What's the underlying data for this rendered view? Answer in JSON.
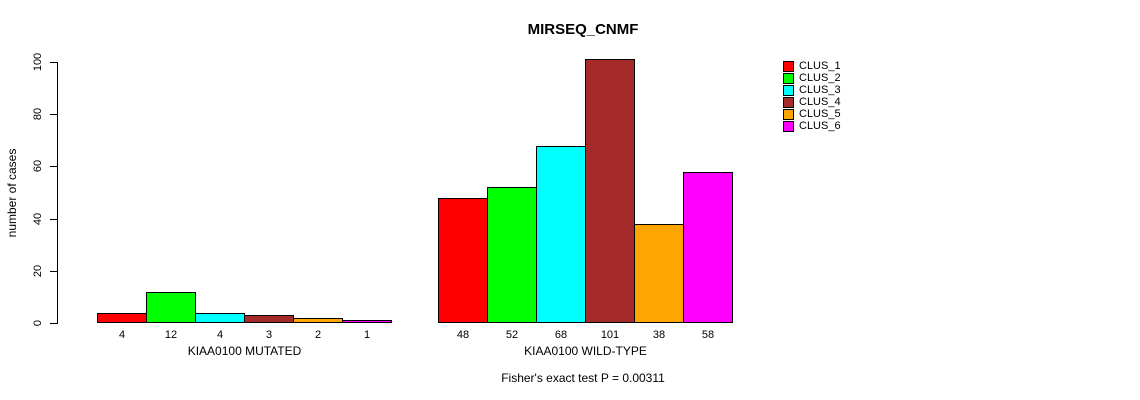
{
  "title": "MIRSEQ_CNMF",
  "y_axis_label": "number of cases",
  "footer_note": "Fisher's exact test P = 0.00311",
  "chart_data": {
    "type": "bar",
    "title": "MIRSEQ_CNMF",
    "ylabel": "number of cases",
    "xlabel": "",
    "ylim": [
      0,
      100
    ],
    "yticks": [
      0,
      20,
      40,
      60,
      80,
      100
    ],
    "grid": false,
    "legend_position": "right",
    "bar_value_labels": true,
    "categories": [
      "KIAA0100 MUTATED",
      "KIAA0100 WILD-TYPE"
    ],
    "series": [
      {
        "name": "CLUS_1",
        "color": "#FF0000",
        "values": [
          4,
          48
        ]
      },
      {
        "name": "CLUS_2",
        "color": "#00FF00",
        "values": [
          12,
          52
        ]
      },
      {
        "name": "CLUS_3",
        "color": "#00FFFF",
        "values": [
          4,
          68
        ]
      },
      {
        "name": "CLUS_4",
        "color": "#A52A2A",
        "values": [
          3,
          101
        ]
      },
      {
        "name": "CLUS_5",
        "color": "#FFA500",
        "values": [
          2,
          38
        ]
      },
      {
        "name": "CLUS_6",
        "color": "#FF00FF",
        "values": [
          1,
          58
        ]
      }
    ],
    "annotation": "Fisher's exact test P = 0.00311"
  }
}
